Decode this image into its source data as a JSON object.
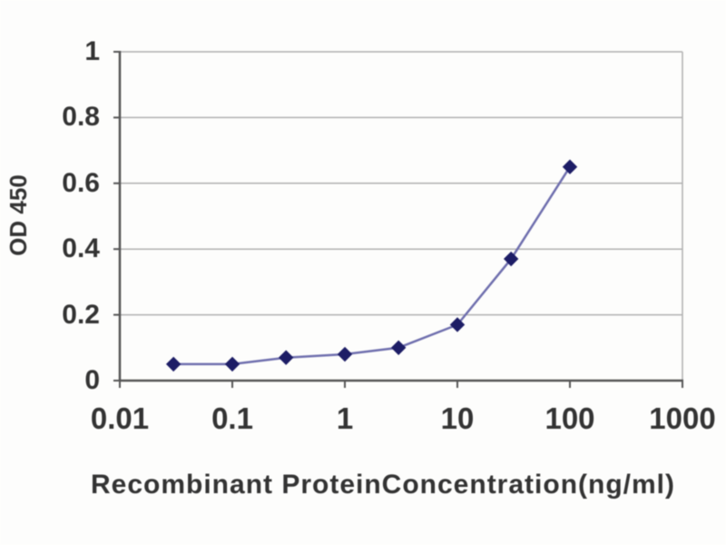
{
  "chart_data": {
    "type": "line",
    "title": "",
    "xlabel": "Recombinant ProteinConcentration(ng/ml)",
    "ylabel": "OD 450",
    "x_scale": "log",
    "xlim": [
      0.01,
      1000
    ],
    "ylim": [
      0,
      1
    ],
    "grid": true,
    "legend_position": "none",
    "marker": "diamond",
    "x": [
      0.03,
      0.1,
      0.3,
      1,
      3,
      10,
      30,
      100
    ],
    "y": [
      0.05,
      0.05,
      0.07,
      0.08,
      0.1,
      0.17,
      0.37,
      0.65
    ],
    "x_ticks": [
      0.01,
      0.1,
      1,
      10,
      100,
      1000
    ],
    "x_tick_labels": [
      "0.01",
      "0.1",
      "1",
      "10",
      "100",
      "1000"
    ],
    "y_ticks": [
      0,
      0.2,
      0.4,
      0.6,
      0.8,
      1
    ],
    "y_tick_labels": [
      "0",
      "0.2",
      "0.4",
      "0.6",
      "0.8",
      "1"
    ],
    "colors": {
      "marker": "#1d1d66",
      "line": "#6f6fae",
      "gridline": "#b0b0b0",
      "axis": "#555555",
      "text": "#333333",
      "background": "#fdfdfc"
    }
  }
}
